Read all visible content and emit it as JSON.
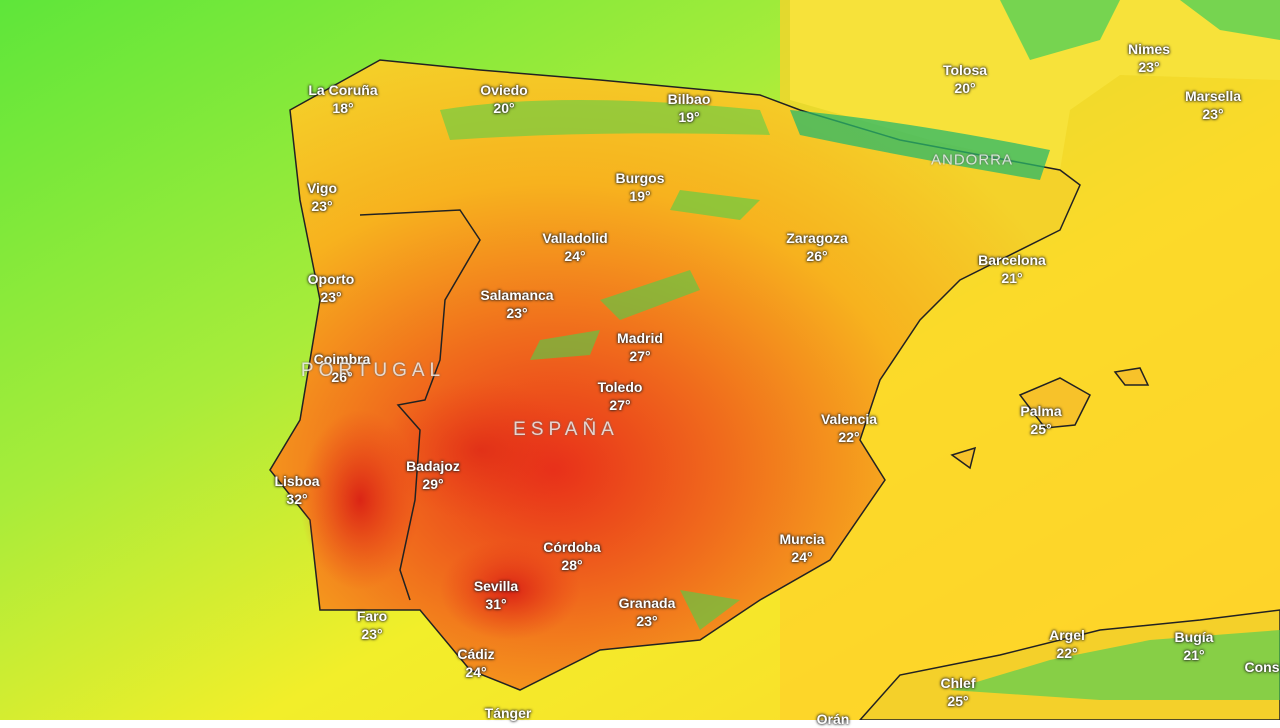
{
  "cities": [
    {
      "name": "La Coruña",
      "temp": "18°"
    },
    {
      "name": "Oviedo",
      "temp": "20°"
    },
    {
      "name": "Bilbao",
      "temp": "19°"
    },
    {
      "name": "Tolosa",
      "temp": "20°"
    },
    {
      "name": "Nimes",
      "temp": "23°"
    },
    {
      "name": "Marsella",
      "temp": "23°"
    },
    {
      "name": "Vigo",
      "temp": "23°"
    },
    {
      "name": "Burgos",
      "temp": "19°"
    },
    {
      "name": "Valladolid",
      "temp": "24°"
    },
    {
      "name": "Zaragoza",
      "temp": "26°"
    },
    {
      "name": "Barcelona",
      "temp": "21°"
    },
    {
      "name": "Oporto",
      "temp": "23°"
    },
    {
      "name": "Salamanca",
      "temp": "23°"
    },
    {
      "name": "Madrid",
      "temp": "27°"
    },
    {
      "name": "Coimbra",
      "temp": "26°"
    },
    {
      "name": "Toledo",
      "temp": "27°"
    },
    {
      "name": "Valencia",
      "temp": "22°"
    },
    {
      "name": "Palma",
      "temp": "25°"
    },
    {
      "name": "Lisboa",
      "temp": "32°"
    },
    {
      "name": "Badajoz",
      "temp": "29°"
    },
    {
      "name": "Córdoba",
      "temp": "28°"
    },
    {
      "name": "Murcia",
      "temp": "24°"
    },
    {
      "name": "Sevilla",
      "temp": "31°"
    },
    {
      "name": "Granada",
      "temp": "23°"
    },
    {
      "name": "Faro",
      "temp": "23°"
    },
    {
      "name": "Cádiz",
      "temp": "24°"
    },
    {
      "name": "Argel",
      "temp": "22°"
    },
    {
      "name": "Bugía",
      "temp": "21°"
    },
    {
      "name": "Chlef",
      "temp": "25°"
    },
    {
      "name": "Tánger"
    },
    {
      "name": "Orán"
    },
    {
      "name": "Cons"
    }
  ],
  "countries": [
    "PORTUGAL",
    "ESPAÑA",
    "ANDORRA"
  ]
}
